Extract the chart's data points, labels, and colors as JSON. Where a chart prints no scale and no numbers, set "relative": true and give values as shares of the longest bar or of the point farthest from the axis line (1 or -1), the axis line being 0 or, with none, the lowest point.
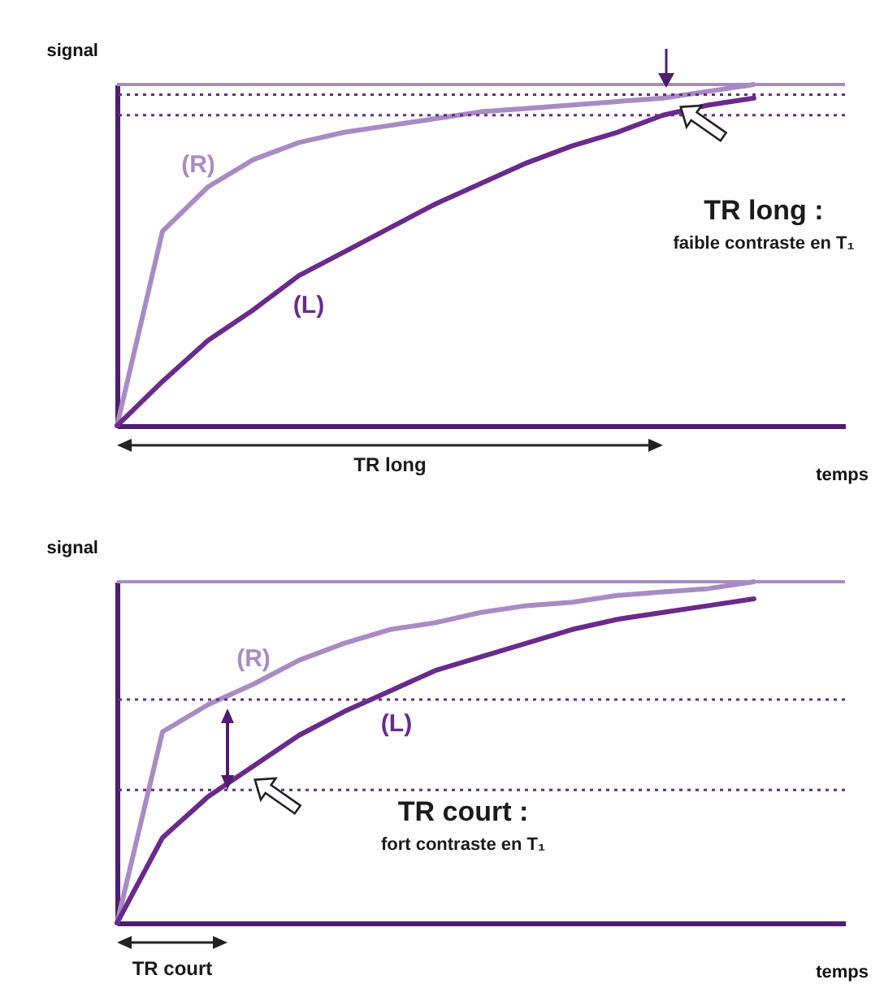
{
  "chart_data": [
    {
      "type": "line",
      "relative": true,
      "xlabel": "temps",
      "ylabel": "signal",
      "tick_labels": false,
      "grid": false,
      "legend": false,
      "marker": "none",
      "line_style": "solid",
      "categories": [
        null,
        null,
        null,
        null,
        null,
        null,
        null,
        null,
        null,
        null,
        null,
        null,
        null,
        null,
        null,
        null,
        null
      ],
      "series": [
        {
          "name": "(R)",
          "color": "#a98bc4",
          "values": [
            0,
            0.57,
            0.7,
            0.78,
            0.83,
            0.86,
            0.88,
            0.9,
            0.92,
            0.93,
            0.94,
            0.95,
            0.96,
            0.98,
            1,
            null,
            null
          ]
        },
        {
          "name": "(L)",
          "color": "#6a2a8c",
          "values": [
            0,
            0.13,
            0.25,
            0.34,
            0.44,
            0.51,
            0.58,
            0.65,
            0.71,
            0.77,
            0.82,
            0.86,
            0.91,
            0.94,
            0.96,
            null,
            null
          ]
        }
      ],
      "ref_lines": [
        {
          "axis": "y",
          "value": 1,
          "color": "#a98bc4",
          "line_style": "solid"
        },
        {
          "axis": "y",
          "value": 0.97,
          "color": "#6a2a8c",
          "line_style": "dotted"
        },
        {
          "axis": "y",
          "value": 0.91,
          "color": "#6a2a8c",
          "line_style": "dotted"
        }
      ],
      "annotations": [
        "TR long :",
        "faible contraste en T₁",
        "TR long"
      ]
    },
    {
      "type": "line",
      "relative": true,
      "xlabel": "temps",
      "ylabel": "signal",
      "tick_labels": false,
      "grid": false,
      "legend": false,
      "marker": "none",
      "line_style": "solid",
      "categories": [
        null,
        null,
        null,
        null,
        null,
        null,
        null,
        null,
        null,
        null,
        null,
        null,
        null,
        null,
        null,
        null,
        null
      ],
      "series": [
        {
          "name": "(R)",
          "color": "#a98bc4",
          "values": [
            0,
            0.56,
            0.64,
            0.7,
            0.77,
            0.82,
            0.86,
            0.88,
            0.91,
            0.93,
            0.94,
            0.96,
            0.97,
            0.98,
            1,
            null,
            null
          ]
        },
        {
          "name": "(L)",
          "color": "#6a2a8c",
          "values": [
            0,
            0.25,
            0.37,
            0.46,
            0.55,
            0.62,
            0.68,
            0.74,
            0.78,
            0.82,
            0.86,
            0.89,
            0.91,
            0.93,
            0.95,
            null,
            null
          ]
        }
      ],
      "ref_lines": [
        {
          "axis": "y",
          "value": 1,
          "color": "#a98bc4",
          "line_style": "solid"
        },
        {
          "axis": "y",
          "value": 0.655,
          "color": "#6a2a8c",
          "line_style": "dotted"
        },
        {
          "axis": "y",
          "value": 0.39,
          "color": "#6a2a8c",
          "line_style": "dotted"
        }
      ],
      "annotations": [
        "TR court :",
        "fort contraste en T₁",
        "TR court"
      ]
    }
  ]
}
